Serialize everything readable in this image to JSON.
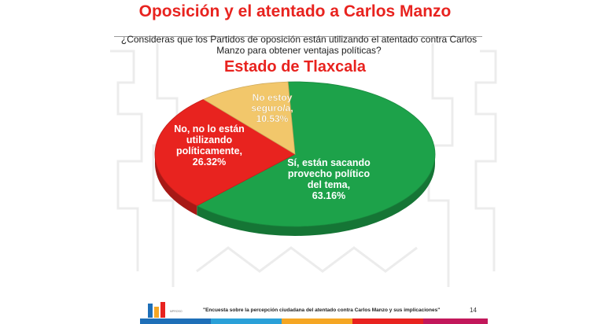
{
  "title": "Oposición y el atentado a Carlos Manzo",
  "question": "¿Consideras que los Partidos de oposición están utilizando el atentado contra Carlos Manzo para obtener ventajas políticas?",
  "subtitle": "Estado de Tlaxcala",
  "chart_data": {
    "type": "pie",
    "title": "",
    "labels": [
      "Sí, están sacando provecho político del tema",
      "No, no lo están utilizando políticamente",
      "No estoy seguro/a"
    ],
    "values": [
      63.16,
      26.32,
      10.53
    ],
    "value_labels": [
      "63.16%",
      "26.32%",
      "10.53%"
    ],
    "colors": [
      "#1da24a",
      "#e8231f",
      "#f2c76b"
    ],
    "label_lines": [
      [
        "Sí, están sacando",
        "provecho político",
        "del tema,",
        "63.16%"
      ],
      [
        "No, no lo están",
        "utilizando",
        "políticamente,",
        "26.32%"
      ],
      [
        "No estoy",
        "seguro/a,",
        "10.53%"
      ]
    ],
    "legend": "none",
    "style": "3d-ellipse"
  },
  "footer": {
    "source": "\"Encuesta sobre la percepción ciudadana del atentado contra Carlos Manzo y sus implicaciones\"",
    "page": "14",
    "logo_text": "MPROSO",
    "bar_colors": [
      "#1e6fb8",
      "#2aa0d8",
      "#f5a623",
      "#e8231f",
      "#c2185b"
    ]
  }
}
